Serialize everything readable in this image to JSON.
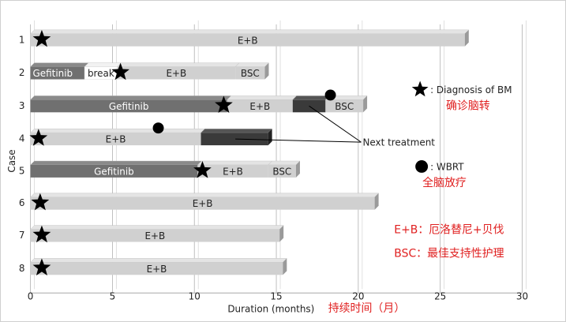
{
  "chart_data": {
    "type": "bar",
    "orientation": "horizontal",
    "stacked": true,
    "xlabel": "Duration (months)",
    "xlabel_zh": "持续时间（月）",
    "ylabel": "Case",
    "xlim": [
      0,
      30
    ],
    "xticks": [
      "0",
      "5",
      "10",
      "15",
      "20",
      "25",
      "30"
    ],
    "xtick_values": [
      0,
      5,
      10,
      15,
      20,
      25,
      30
    ],
    "grid": "vertical",
    "categories": [
      "1",
      "2",
      "3",
      "4",
      "5",
      "6",
      "7",
      "8"
    ],
    "cases": [
      {
        "case": "1",
        "segments": [
          {
            "start": 0,
            "end": 26.5,
            "kind": "eb",
            "label": "E+B"
          }
        ],
        "bm": [
          0.5
        ],
        "wbrt": []
      },
      {
        "case": "2",
        "segments": [
          {
            "start": 0,
            "end": 3.3,
            "kind": "gefitinib",
            "label": "Gefitinib"
          },
          {
            "start": 3.3,
            "end": 5.3,
            "kind": "break",
            "label": "break"
          },
          {
            "start": 5.3,
            "end": 12.5,
            "kind": "eb",
            "label": "E+B"
          },
          {
            "start": 12.5,
            "end": 14.3,
            "kind": "bsc",
            "label": "BSC"
          }
        ],
        "bm": [
          5.3
        ],
        "wbrt": []
      },
      {
        "case": "3",
        "segments": [
          {
            "start": 0,
            "end": 12.0,
            "kind": "gefitinib",
            "label": "Gefitinib"
          },
          {
            "start": 12.0,
            "end": 16.0,
            "kind": "eb",
            "label": "E+B"
          },
          {
            "start": 16.0,
            "end": 18.0,
            "kind": "next",
            "label": ""
          },
          {
            "start": 18.0,
            "end": 20.3,
            "kind": "bsc",
            "label": "BSC"
          }
        ],
        "bm": [
          11.6
        ],
        "wbrt": [
          18.3
        ]
      },
      {
        "case": "4",
        "segments": [
          {
            "start": 0,
            "end": 10.4,
            "kind": "eb",
            "label": "E+B"
          },
          {
            "start": 10.4,
            "end": 14.5,
            "kind": "next",
            "label": ""
          }
        ],
        "bm": [
          0.3
        ],
        "wbrt": [
          7.8
        ]
      },
      {
        "case": "5",
        "segments": [
          {
            "start": 0,
            "end": 10.2,
            "kind": "gefitinib",
            "label": "Gefitinib"
          },
          {
            "start": 10.2,
            "end": 14.5,
            "kind": "eb",
            "label": "E+B"
          },
          {
            "start": 14.5,
            "end": 16.2,
            "kind": "bsc",
            "label": "BSC"
          }
        ],
        "bm": [
          10.3
        ],
        "wbrt": []
      },
      {
        "case": "6",
        "segments": [
          {
            "start": 0,
            "end": 21.0,
            "kind": "eb",
            "label": "E+B"
          }
        ],
        "bm": [
          0.4
        ],
        "wbrt": []
      },
      {
        "case": "7",
        "segments": [
          {
            "start": 0,
            "end": 15.2,
            "kind": "eb",
            "label": "E+B"
          }
        ],
        "bm": [
          0.5
        ],
        "wbrt": []
      },
      {
        "case": "8",
        "segments": [
          {
            "start": 0,
            "end": 15.4,
            "kind": "eb",
            "label": "E+B"
          }
        ],
        "bm": [
          0.5
        ],
        "wbrt": []
      }
    ],
    "annotation": {
      "text": "Next treatment",
      "targets": [
        {
          "case": "3",
          "x": 17.0
        },
        {
          "case": "4",
          "x": 12.5
        }
      ]
    },
    "legend": [
      {
        "symbol": "star",
        "text": ": Diagnosis of BM",
        "text_zh": "确诊脑转"
      },
      {
        "symbol": "circle",
        "text": ": WBRT",
        "text_zh": "全脑放疗"
      }
    ],
    "notes": [
      "E+B：厄洛替尼+贝伐",
      "BSC：最佳支持性护理"
    ],
    "colors": {
      "eb_top": "#e4e4e4",
      "eb_face": "#d0d0d0",
      "eb_side": "#9a9a9a",
      "dark_face": "#707070",
      "dark_top": "#8a8a8a",
      "next_face": "#3a3a3a",
      "next_top": "#555555",
      "break_face": "#ffffff",
      "grid": "#b0b0b0",
      "red": "#e02020",
      "text": "#222222"
    }
  }
}
